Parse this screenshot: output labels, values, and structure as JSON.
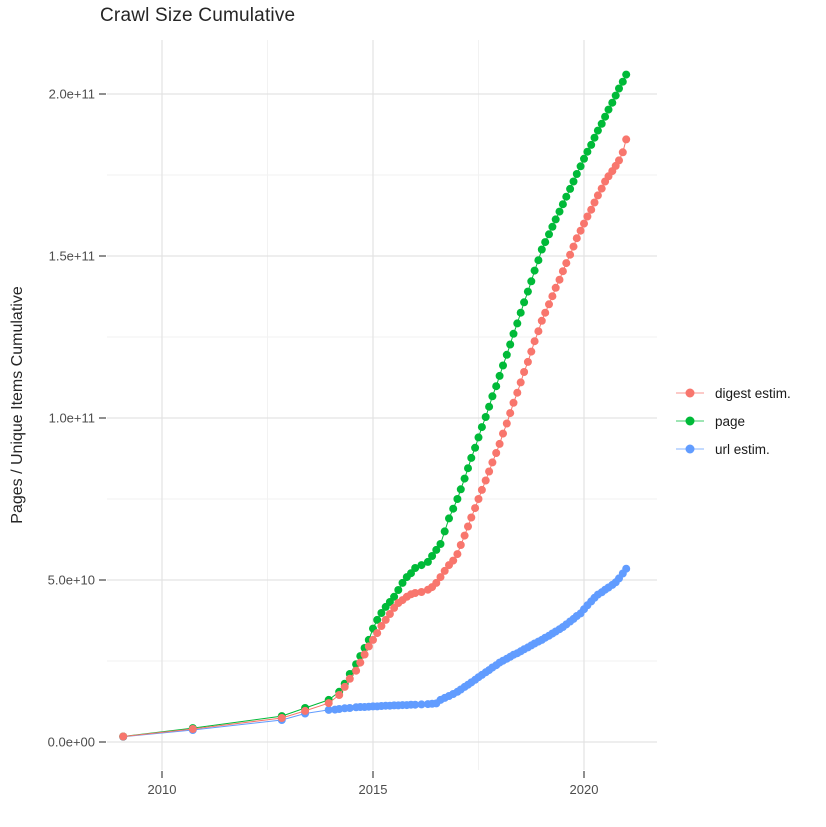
{
  "title": "Crawl Size Cumulative",
  "colors": {
    "background": "#ffffff",
    "grid_major": "#e3e3e3",
    "grid_minor": "#f2f2f2",
    "tick_mark": "#333333",
    "tick_label": "#4d4d4d",
    "title_text": "#262626",
    "digest": "#F8766D",
    "page": "#00BA38",
    "url": "#619CFF"
  },
  "axes": {
    "y_label": "Pages / Unique Items Cumulative",
    "y_tick_labels": [
      "0.0e+00",
      "5.0e+10",
      "1.0e+11",
      "1.5e+11",
      "2.0e+11"
    ],
    "x_tick_labels": [
      "2010",
      "2015",
      "2020"
    ]
  },
  "legend": {
    "position": "right",
    "items": [
      {
        "label": "digest estim.",
        "color": "#F8766D"
      },
      {
        "label": "page",
        "color": "#00BA38"
      },
      {
        "label": "url estim.",
        "color": "#619CFF"
      }
    ]
  },
  "chart_data": {
    "type": "line",
    "title": "Crawl Size Cumulative",
    "xlabel": "",
    "ylabel": "Pages / Unique Items Cumulative",
    "xlim": [
      2008.7,
      2021.72
    ],
    "ylim": [
      -8600000000.0,
      216600000000.0
    ],
    "grid": true,
    "legend_position": "right",
    "x_major_ticks": [
      2010,
      2015,
      2020
    ],
    "x_minor_ticks": [
      2012.5,
      2017.5
    ],
    "x_tick_labels": [
      "2010",
      "2015",
      "2020"
    ],
    "y_major_ticks": [
      0,
      50000000000.0,
      100000000000.0,
      150000000000.0,
      200000000000.0
    ],
    "y_minor_ticks": [
      25000000000.0,
      75000000000.0,
      125000000000.0,
      175000000000.0
    ],
    "y_tick_labels": [
      "0.0e+00",
      "5.0e+10",
      "1.0e+11",
      "1.5e+11",
      "2.0e+11"
    ],
    "series": [
      {
        "name": "url estim.",
        "color": "#619CFF",
        "points": [
          [
            2009.08,
            1600000000.0
          ],
          [
            2010.73,
            3700000000.0
          ],
          [
            2012.84,
            6800000000.0
          ],
          [
            2013.39,
            8800000000.0
          ],
          [
            2013.95,
            9900000000.0
          ],
          [
            2014.1,
            10000000000.0
          ],
          [
            2014.2,
            10200000000.0
          ],
          [
            2014.33,
            10400000000.0
          ],
          [
            2014.45,
            10500000000.0
          ],
          [
            2014.6,
            10700000000.0
          ],
          [
            2014.7,
            10800000000.0
          ],
          [
            2014.8,
            10800000000.0
          ],
          [
            2014.9,
            10900000000.0
          ],
          [
            2015.0,
            11000000000.0
          ],
          [
            2015.1,
            11000000000.0
          ],
          [
            2015.2,
            11100000000.0
          ],
          [
            2015.3,
            11200000000.0
          ],
          [
            2015.4,
            11200000000.0
          ],
          [
            2015.5,
            11300000000.0
          ],
          [
            2015.6,
            11300000000.0
          ],
          [
            2015.7,
            11400000000.0
          ],
          [
            2015.8,
            11400000000.0
          ],
          [
            2015.9,
            11500000000.0
          ],
          [
            2016.0,
            11500000000.0
          ],
          [
            2016.15,
            11600000000.0
          ],
          [
            2016.3,
            11700000000.0
          ],
          [
            2016.4,
            11800000000.0
          ],
          [
            2016.5,
            11900000000.0
          ],
          [
            2016.6,
            13000000000.0
          ],
          [
            2016.7,
            13600000000.0
          ],
          [
            2016.8,
            14200000000.0
          ],
          [
            2016.9,
            14800000000.0
          ],
          [
            2017.0,
            15500000000.0
          ],
          [
            2017.08,
            16200000000.0
          ],
          [
            2017.17,
            17000000000.0
          ],
          [
            2017.25,
            17700000000.0
          ],
          [
            2017.33,
            18400000000.0
          ],
          [
            2017.42,
            19200000000.0
          ],
          [
            2017.5,
            20000000000.0
          ],
          [
            2017.58,
            20700000000.0
          ],
          [
            2017.67,
            21500000000.0
          ],
          [
            2017.75,
            22200000000.0
          ],
          [
            2017.83,
            23000000000.0
          ],
          [
            2017.92,
            23700000000.0
          ],
          [
            2018.0,
            24500000000.0
          ],
          [
            2018.08,
            25100000000.0
          ],
          [
            2018.17,
            25700000000.0
          ],
          [
            2018.25,
            26300000000.0
          ],
          [
            2018.33,
            26900000000.0
          ],
          [
            2018.42,
            27400000000.0
          ],
          [
            2018.5,
            28000000000.0
          ],
          [
            2018.58,
            28600000000.0
          ],
          [
            2018.67,
            29200000000.0
          ],
          [
            2018.75,
            29800000000.0
          ],
          [
            2018.83,
            30400000000.0
          ],
          [
            2018.92,
            31000000000.0
          ],
          [
            2019.0,
            31500000000.0
          ],
          [
            2019.08,
            32200000000.0
          ],
          [
            2019.17,
            32800000000.0
          ],
          [
            2019.25,
            33500000000.0
          ],
          [
            2019.33,
            34100000000.0
          ],
          [
            2019.42,
            34800000000.0
          ],
          [
            2019.5,
            35500000000.0
          ],
          [
            2019.58,
            36300000000.0
          ],
          [
            2019.67,
            37200000000.0
          ],
          [
            2019.75,
            38000000000.0
          ],
          [
            2019.83,
            38900000000.0
          ],
          [
            2019.92,
            39700000000.0
          ],
          [
            2020.0,
            41000000000.0
          ],
          [
            2020.08,
            42200000000.0
          ],
          [
            2020.17,
            43400000000.0
          ],
          [
            2020.25,
            44500000000.0
          ],
          [
            2020.33,
            45500000000.0
          ],
          [
            2020.42,
            46200000000.0
          ],
          [
            2020.5,
            47000000000.0
          ],
          [
            2020.58,
            47700000000.0
          ],
          [
            2020.67,
            48500000000.0
          ],
          [
            2020.75,
            49300000000.0
          ],
          [
            2020.83,
            50500000000.0
          ],
          [
            2020.92,
            52000000000.0
          ],
          [
            2021.0,
            53500000000.0
          ]
        ]
      },
      {
        "name": "page",
        "color": "#00BA38",
        "points": [
          [
            2009.08,
            1700000000.0
          ],
          [
            2010.73,
            4300000000.0
          ],
          [
            2012.84,
            8000000000.0
          ],
          [
            2013.39,
            10500000000.0
          ],
          [
            2013.95,
            13000000000.0
          ],
          [
            2014.2,
            15500000000.0
          ],
          [
            2014.33,
            18000000000.0
          ],
          [
            2014.45,
            21000000000.0
          ],
          [
            2014.6,
            24000000000.0
          ],
          [
            2014.7,
            26500000000.0
          ],
          [
            2014.8,
            29000000000.0
          ],
          [
            2014.9,
            31500000000.0
          ],
          [
            2015.0,
            35000000000.0
          ],
          [
            2015.1,
            37700000000.0
          ],
          [
            2015.2,
            39800000000.0
          ],
          [
            2015.3,
            41700000000.0
          ],
          [
            2015.4,
            43200000000.0
          ],
          [
            2015.5,
            44800000000.0
          ],
          [
            2015.6,
            46900000000.0
          ],
          [
            2015.7,
            49100000000.0
          ],
          [
            2015.8,
            50900000000.0
          ],
          [
            2015.9,
            52100000000.0
          ],
          [
            2016.0,
            53700000000.0
          ],
          [
            2016.15,
            54600000000.0
          ],
          [
            2016.3,
            55600000000.0
          ],
          [
            2016.4,
            57400000000.0
          ],
          [
            2016.5,
            59300000000.0
          ],
          [
            2016.6,
            61100000000.0
          ],
          [
            2016.7,
            65000000000.0
          ],
          [
            2016.8,
            69000000000.0
          ],
          [
            2016.9,
            72000000000.0
          ],
          [
            2017.0,
            75000000000.0
          ],
          [
            2017.08,
            78000000000.0
          ],
          [
            2017.17,
            81300000000.0
          ],
          [
            2017.25,
            84500000000.0
          ],
          [
            2017.33,
            87700000000.0
          ],
          [
            2017.42,
            90800000000.0
          ],
          [
            2017.5,
            94000000000.0
          ],
          [
            2017.58,
            97200000000.0
          ],
          [
            2017.67,
            100300000000.0
          ],
          [
            2017.75,
            103500000000.0
          ],
          [
            2017.83,
            106700000000.0
          ],
          [
            2017.92,
            109800000000.0
          ],
          [
            2018.0,
            113000000000.0
          ],
          [
            2018.08,
            116200000000.0
          ],
          [
            2018.17,
            119500000000.0
          ],
          [
            2018.25,
            122700000000.0
          ],
          [
            2018.33,
            126000000000.0
          ],
          [
            2018.42,
            129200000000.0
          ],
          [
            2018.5,
            132500000000.0
          ],
          [
            2018.58,
            135700000000.0
          ],
          [
            2018.67,
            139000000000.0
          ],
          [
            2018.75,
            142200000000.0
          ],
          [
            2018.83,
            145500000000.0
          ],
          [
            2018.92,
            148700000000.0
          ],
          [
            2019.0,
            152000000000.0
          ],
          [
            2019.08,
            154300000000.0
          ],
          [
            2019.17,
            156700000000.0
          ],
          [
            2019.25,
            159000000000.0
          ],
          [
            2019.33,
            161300000000.0
          ],
          [
            2019.42,
            163700000000.0
          ],
          [
            2019.5,
            166000000000.0
          ],
          [
            2019.58,
            168300000000.0
          ],
          [
            2019.67,
            170700000000.0
          ],
          [
            2019.75,
            173000000000.0
          ],
          [
            2019.83,
            175300000000.0
          ],
          [
            2019.92,
            177700000000.0
          ],
          [
            2020.0,
            180000000000.0
          ],
          [
            2020.08,
            182200000000.0
          ],
          [
            2020.17,
            184300000000.0
          ],
          [
            2020.25,
            186500000000.0
          ],
          [
            2020.33,
            188700000000.0
          ],
          [
            2020.42,
            190800000000.0
          ],
          [
            2020.5,
            193000000000.0
          ],
          [
            2020.58,
            195200000000.0
          ],
          [
            2020.67,
            197300000000.0
          ],
          [
            2020.75,
            199500000000.0
          ],
          [
            2020.83,
            201700000000.0
          ],
          [
            2020.92,
            203800000000.0
          ],
          [
            2021.0,
            206000000000.0
          ]
        ]
      },
      {
        "name": "digest estim.",
        "color": "#F8766D",
        "points": [
          [
            2009.08,
            1700000000.0
          ],
          [
            2010.73,
            4000000000.0
          ],
          [
            2012.84,
            7400000000.0
          ],
          [
            2013.39,
            9600000000.0
          ],
          [
            2013.95,
            12000000000.0
          ],
          [
            2014.2,
            14500000000.0
          ],
          [
            2014.33,
            17000000000.0
          ],
          [
            2014.45,
            19500000000.0
          ],
          [
            2014.6,
            22000000000.0
          ],
          [
            2014.7,
            24500000000.0
          ],
          [
            2014.8,
            27000000000.0
          ],
          [
            2014.9,
            29500000000.0
          ],
          [
            2015.0,
            31500000000.0
          ],
          [
            2015.1,
            33600000000.0
          ],
          [
            2015.2,
            35800000000.0
          ],
          [
            2015.3,
            37700000000.0
          ],
          [
            2015.4,
            39500000000.0
          ],
          [
            2015.5,
            41400000000.0
          ],
          [
            2015.6,
            42900000000.0
          ],
          [
            2015.7,
            43800000000.0
          ],
          [
            2015.8,
            44800000000.0
          ],
          [
            2015.9,
            45600000000.0
          ],
          [
            2016.0,
            46000000000.0
          ],
          [
            2016.15,
            46300000000.0
          ],
          [
            2016.3,
            47000000000.0
          ],
          [
            2016.4,
            47800000000.0
          ],
          [
            2016.5,
            49100000000.0
          ],
          [
            2016.6,
            50900000000.0
          ],
          [
            2016.7,
            52800000000.0
          ],
          [
            2016.8,
            54600000000.0
          ],
          [
            2016.9,
            56000000000.0
          ],
          [
            2017.0,
            58000000000.0
          ],
          [
            2017.08,
            60800000000.0
          ],
          [
            2017.17,
            63700000000.0
          ],
          [
            2017.25,
            66500000000.0
          ],
          [
            2017.33,
            69300000000.0
          ],
          [
            2017.42,
            72200000000.0
          ],
          [
            2017.5,
            75000000000.0
          ],
          [
            2017.58,
            77800000000.0
          ],
          [
            2017.67,
            80700000000.0
          ],
          [
            2017.75,
            83500000000.0
          ],
          [
            2017.83,
            86300000000.0
          ],
          [
            2017.92,
            89200000000.0
          ],
          [
            2018.0,
            92000000000.0
          ],
          [
            2018.08,
            95200000000.0
          ],
          [
            2018.17,
            98300000000.0
          ],
          [
            2018.25,
            101500000000.0
          ],
          [
            2018.33,
            104700000000.0
          ],
          [
            2018.42,
            107800000000.0
          ],
          [
            2018.5,
            111000000000.0
          ],
          [
            2018.58,
            114200000000.0
          ],
          [
            2018.67,
            117300000000.0
          ],
          [
            2018.75,
            120500000000.0
          ],
          [
            2018.83,
            123700000000.0
          ],
          [
            2018.92,
            126800000000.0
          ],
          [
            2019.0,
            130000000000.0
          ],
          [
            2019.08,
            132500000000.0
          ],
          [
            2019.17,
            135100000000.0
          ],
          [
            2019.25,
            137600000000.0
          ],
          [
            2019.33,
            140200000000.0
          ],
          [
            2019.42,
            142700000000.0
          ],
          [
            2019.5,
            145300000000.0
          ],
          [
            2019.58,
            147800000000.0
          ],
          [
            2019.67,
            150400000000.0
          ],
          [
            2019.75,
            152900000000.0
          ],
          [
            2019.83,
            155500000000.0
          ],
          [
            2019.92,
            157800000000.0
          ],
          [
            2020.0,
            160000000000.0
          ],
          [
            2020.08,
            162200000000.0
          ],
          [
            2020.17,
            164300000000.0
          ],
          [
            2020.25,
            166500000000.0
          ],
          [
            2020.33,
            168700000000.0
          ],
          [
            2020.42,
            170800000000.0
          ],
          [
            2020.5,
            173000000000.0
          ],
          [
            2020.58,
            174600000000.0
          ],
          [
            2020.67,
            176200000000.0
          ],
          [
            2020.75,
            177800000000.0
          ],
          [
            2020.83,
            179500000000.0
          ],
          [
            2020.92,
            182000000000.0
          ],
          [
            2021.0,
            186000000000.0
          ]
        ]
      }
    ]
  }
}
